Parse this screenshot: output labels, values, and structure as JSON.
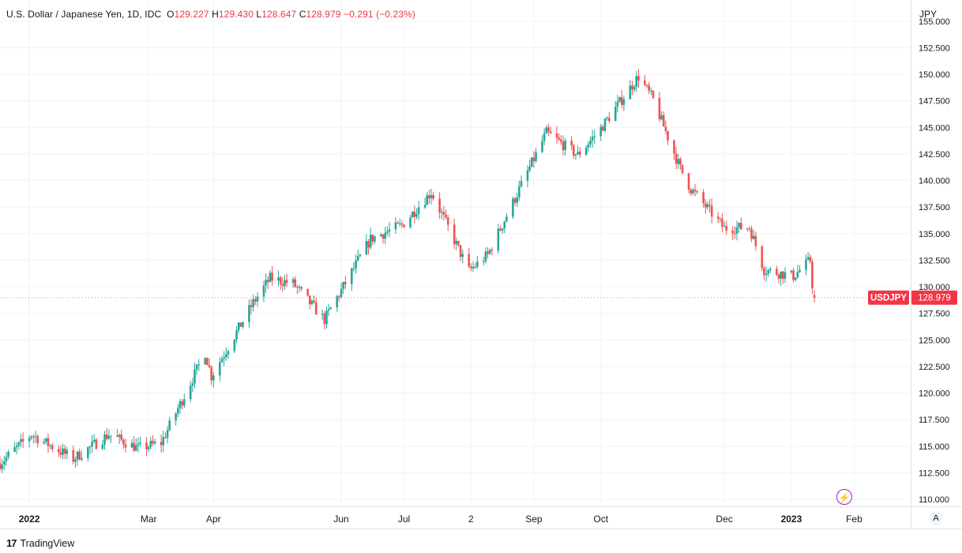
{
  "header": {
    "symbol": "U.S. Dollar / Japanese Yen, 1D, IDC",
    "open_label": "O",
    "open": "129.227",
    "high_label": "H",
    "high": "129.430",
    "low_label": "L",
    "low": "128.647",
    "close_label": "C",
    "close": "128.979",
    "change": "−0.291 (−0.23%)"
  },
  "unit": "JPY",
  "price_tag": {
    "name": "USDJPY",
    "value": "128.979"
  },
  "auto_button": "A",
  "footer": {
    "brand": "TradingView",
    "logo_text": "17"
  },
  "colors": {
    "up": "#26a69a",
    "down": "#ef5350",
    "grid": "#f0f3fa",
    "tag": "#f23645",
    "alert": "#9c27b0"
  },
  "chart_data": {
    "type": "candlestick",
    "y_ticks": [
      "110.000",
      "112.500",
      "115.000",
      "117.500",
      "120.000",
      "122.500",
      "125.000",
      "127.500",
      "130.000",
      "132.500",
      "135.000",
      "137.500",
      "140.000",
      "142.500",
      "145.000",
      "147.500",
      "150.000",
      "152.500",
      "155.000"
    ],
    "ylim": [
      110,
      155
    ],
    "x_ticks": [
      {
        "label": "2022",
        "date": "2022-01-03",
        "bold": true
      },
      {
        "label": "Mar",
        "date": "2022-03-01"
      },
      {
        "label": "Apr",
        "date": "2022-04-01"
      },
      {
        "label": "Jun",
        "date": "2022-06-01"
      },
      {
        "label": "Jul",
        "date": "2022-07-01"
      },
      {
        "label": "2",
        "date": "2022-08-02"
      },
      {
        "label": "Sep",
        "date": "2022-09-01"
      },
      {
        "label": "Oct",
        "date": "2022-10-03"
      },
      {
        "label": "Dec",
        "date": "2022-12-01"
      },
      {
        "label": "2023",
        "date": "2023-01-02",
        "bold": true
      },
      {
        "label": "Feb",
        "date": "2023-02-01"
      }
    ],
    "x_range": [
      "2021-12-20",
      "2023-02-28"
    ],
    "anchors": [
      [
        "2021-12-20",
        113.4
      ],
      [
        "2022-01-04",
        116.1
      ],
      [
        "2022-01-24",
        113.8
      ],
      [
        "2022-02-10",
        116.1
      ],
      [
        "2022-02-24",
        114.8
      ],
      [
        "2022-03-07",
        115.3
      ],
      [
        "2022-03-28",
        123.8
      ],
      [
        "2022-03-31",
        121.6
      ],
      [
        "2022-04-20",
        128.5
      ],
      [
        "2022-04-28",
        130.8
      ],
      [
        "2022-05-09",
        130.3
      ],
      [
        "2022-05-24",
        126.9
      ],
      [
        "2022-06-15",
        134.5
      ],
      [
        "2022-06-30",
        135.8
      ],
      [
        "2022-07-14",
        138.9
      ],
      [
        "2022-08-01",
        131.5
      ],
      [
        "2022-08-10",
        133.0
      ],
      [
        "2022-09-07",
        144.5
      ],
      [
        "2022-09-22",
        142.4
      ],
      [
        "2022-10-03",
        144.9
      ],
      [
        "2022-10-21",
        149.8
      ],
      [
        "2022-10-28",
        147.6
      ],
      [
        "2022-11-10",
        141.1
      ],
      [
        "2022-11-15",
        139.2
      ],
      [
        "2022-12-01",
        135.5
      ],
      [
        "2022-12-13",
        135.6
      ],
      [
        "2022-12-20",
        131.6
      ],
      [
        "2023-01-03",
        131.0
      ],
      [
        "2023-01-11",
        132.5
      ],
      [
        "2023-01-13",
        128.0
      ]
    ]
  }
}
